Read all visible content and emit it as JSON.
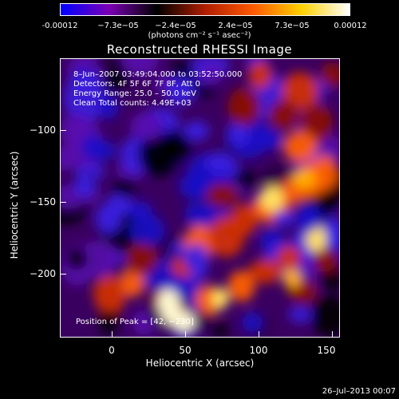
{
  "colorbar": {
    "tick_labels": [
      "-0.00012",
      "−7.3e−05",
      "−2.4e−05",
      "2.4e−05",
      "7.3e−05",
      "0.00012"
    ],
    "units": "(photons cm⁻² s⁻¹ asec⁻²)",
    "colors": [
      "#0000ff",
      "#7a00b4",
      "#000000",
      "#b01e00",
      "#ff5a00",
      "#ffd000",
      "#ffffff"
    ]
  },
  "plot": {
    "title": "Reconstructed RHESSI Image",
    "info_lines": [
      "8–Jun–2007 03:49:04.000 to 03:52:50.000",
      "Detectors: 4F 5F 6F 7F 8F, Att 0",
      "Energy Range: 25.0 – 50.0 keV",
      "Clean    Total counts: 4.49E+03"
    ],
    "peak_label": "Position of Peak = [",
    "peak_value": "42, −230]",
    "xlabel": "Heliocentric X (arcsec)",
    "ylabel": "Heliocentric Y (arcsec)",
    "x_ticks": [
      "0",
      "50",
      "100",
      "150"
    ],
    "y_ticks": [
      "−100",
      "−150",
      "−200"
    ],
    "footer_date": "26–Jul–2013 00:07"
  },
  "chart_data": {
    "type": "heatmap",
    "title": "Reconstructed RHESSI Image",
    "xlabel": "Heliocentric X (arcsec)",
    "ylabel": "Heliocentric Y (arcsec)",
    "xlim": [
      -35,
      155
    ],
    "ylim": [
      -243,
      -70
    ],
    "x_ticks": [
      0,
      50,
      100,
      150
    ],
    "y_ticks": [
      -100,
      -150,
      -200
    ],
    "color_range": [
      -0.00012,
      0.00012
    ],
    "peak": [
      42,
      -230
    ],
    "colorscale": "blue-purple-black-red-orange-yellow-white"
  }
}
